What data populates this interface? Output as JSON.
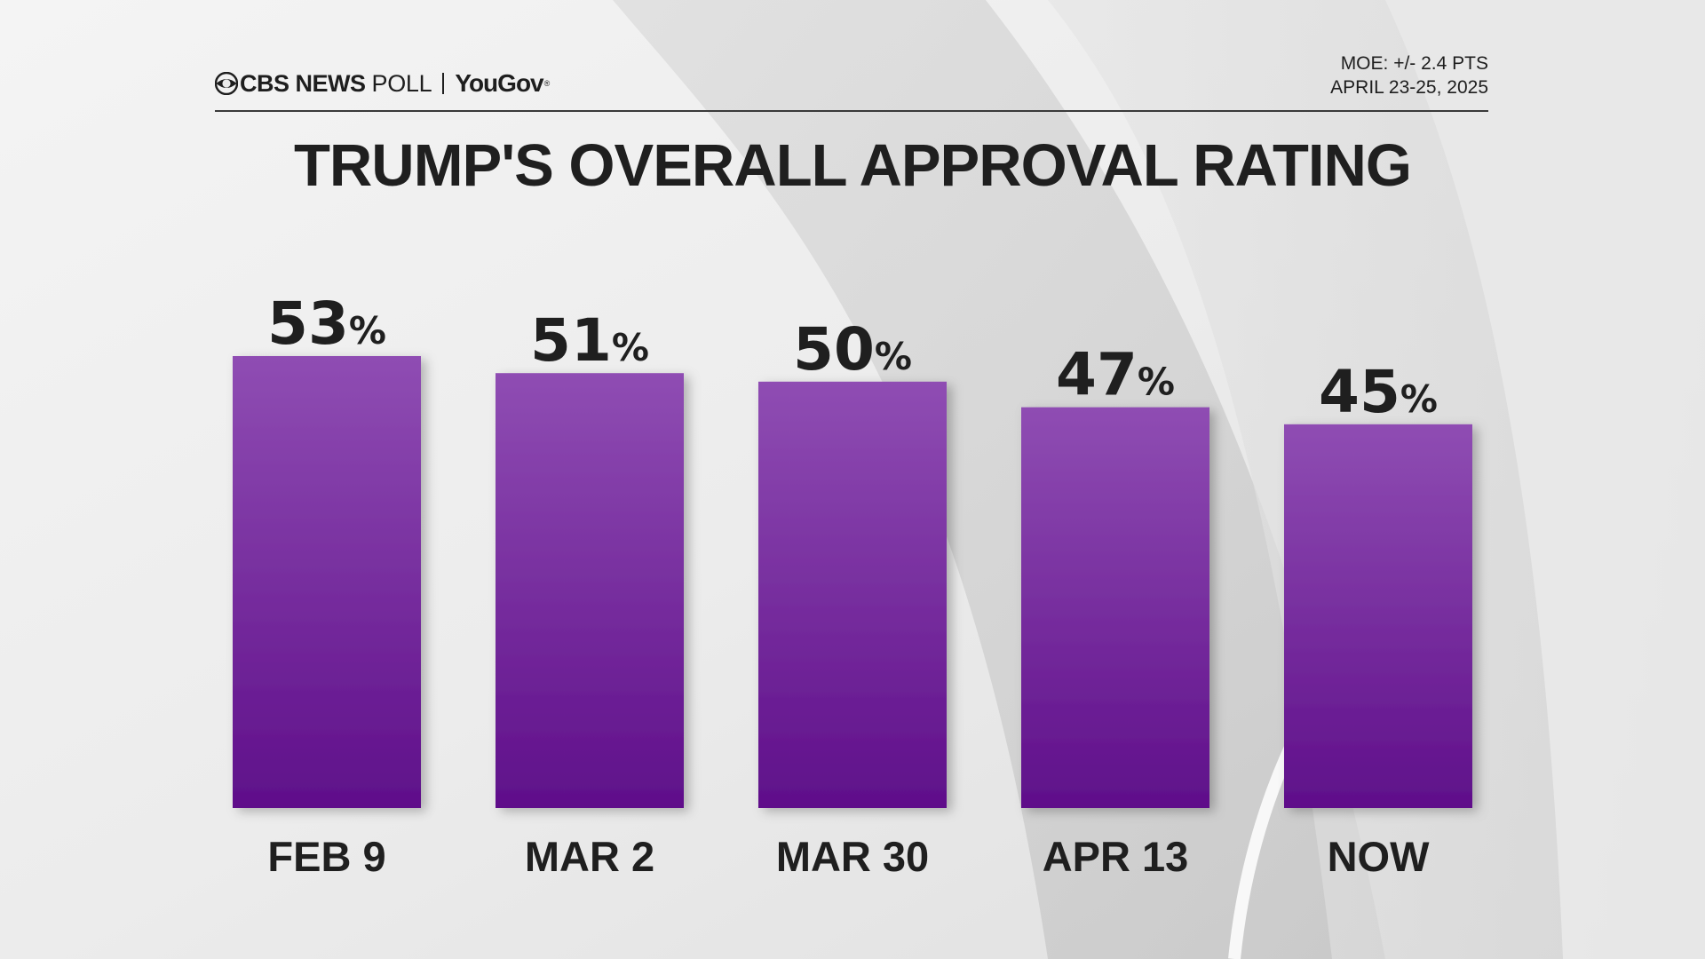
{
  "header": {
    "brand_cbs": "CBS NEWS",
    "brand_poll": "POLL",
    "brand_yougov": "YouGov",
    "brand_reg": "®",
    "moe": "MOE: +/- 2.4 PTS",
    "dates": "APRIL 23-25, 2025"
  },
  "colors": {
    "bar_top": "#8f4db3",
    "bar_bottom": "#5f0f8a",
    "text": "#1f1f1f"
  },
  "chart_data": {
    "type": "bar",
    "title": "TRUMP'S OVERALL APPROVAL RATING",
    "categories": [
      "FEB 9",
      "MAR 2",
      "MAR 30",
      "APR 13",
      "NOW"
    ],
    "values": [
      53,
      51,
      50,
      47,
      45
    ],
    "value_suffix": "%",
    "xlabel": "",
    "ylabel": "",
    "ylim": [
      0,
      53
    ],
    "grid": false,
    "legend": "none"
  }
}
